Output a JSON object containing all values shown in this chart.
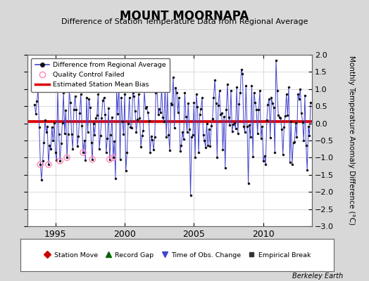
{
  "title": "MOUNT MOORNAPA",
  "subtitle": "Difference of Station Temperature Data from Regional Average",
  "ylabel": "Monthly Temperature Anomaly Difference (°C)",
  "credit": "Berkeley Earth",
  "xlim": [
    1993.0,
    2013.5
  ],
  "ylim": [
    -3,
    2
  ],
  "yticks": [
    -3,
    -2.5,
    -2,
    -1.5,
    -1,
    -0.5,
    0,
    0.5,
    1,
    1.5,
    2
  ],
  "xticks": [
    1995,
    2000,
    2005,
    2010
  ],
  "bias_level": 0.05,
  "bias_color": "#dd0000",
  "line_color": "#4444cc",
  "marker_color": "#111111",
  "qc_color": "#ff88bb",
  "bg_color": "#d8d8d8",
  "plot_bg_color": "#ffffff",
  "legend1_items": [
    "Difference from Regional Average",
    "Quality Control Failed",
    "Estimated Station Mean Bias"
  ],
  "legend2_items": [
    "Station Move",
    "Record Gap",
    "Time of Obs. Change",
    "Empirical Break"
  ],
  "seed": 42,
  "n_months": 240,
  "t_start": 1993.5
}
